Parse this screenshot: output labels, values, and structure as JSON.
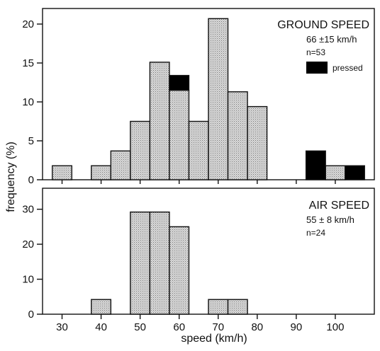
{
  "chart_data": {
    "type": "bar",
    "xlabel": "speed (km/h)",
    "ylabel": "frequency (%)",
    "x_ticks": [
      30,
      40,
      50,
      60,
      70,
      80,
      90,
      100
    ],
    "xlim": [
      25,
      110
    ],
    "bin_width": 5,
    "panels": [
      {
        "id": "ground",
        "title": "GROUND SPEED",
        "stats": [
          "66 ±15 km/h",
          "n=53"
        ],
        "ylim": [
          0,
          22
        ],
        "y_ticks": [
          0,
          5,
          10,
          15,
          20
        ],
        "legend": [
          {
            "label": "pressed",
            "color": "#000000"
          }
        ],
        "series": [
          {
            "name": "",
            "fill": "#cfcfcf",
            "x": [
              30,
              40,
              45,
              50,
              55,
              60,
              65,
              70,
              75,
              80,
              95,
              100,
              105
            ],
            "values": [
              1.8,
              1.8,
              3.7,
              7.5,
              15.1,
              11.5,
              7.5,
              20.7,
              11.3,
              9.4,
              0,
              1.8,
              0
            ]
          },
          {
            "name": "pressed",
            "fill": "#000000",
            "x": [
              60,
              95,
              105
            ],
            "base": [
              11.5,
              0,
              0
            ],
            "values": [
              1.9,
              3.7,
              1.8
            ]
          }
        ]
      },
      {
        "id": "air",
        "title": "AIR SPEED",
        "stats": [
          "55 ± 8 km/h",
          "n=24"
        ],
        "ylim": [
          0,
          36
        ],
        "y_ticks": [
          0,
          10,
          20,
          30
        ],
        "series": [
          {
            "name": "",
            "fill": "#cfcfcf",
            "x": [
              40,
              50,
              55,
              60,
              70,
              75
            ],
            "values": [
              4.2,
              29.2,
              29.2,
              25,
              4.2,
              4.2
            ]
          }
        ]
      }
    ]
  }
}
